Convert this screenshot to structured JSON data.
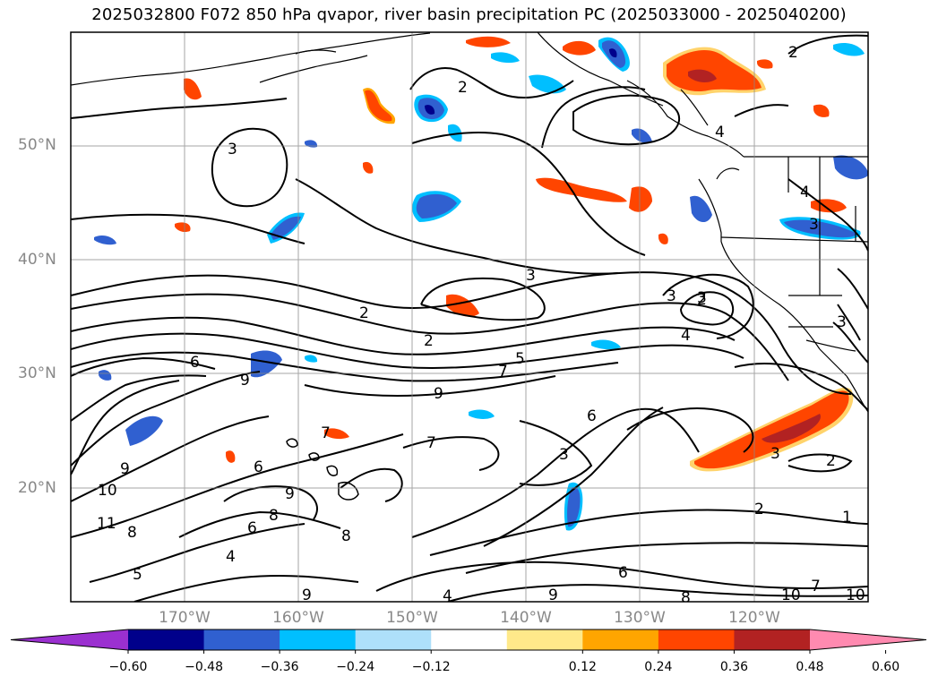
{
  "title": "2025032800 F072 850 hPa qvapor, river basin precipitation PC (2025033000 - 2025040200)",
  "map": {
    "lat_labels": [
      "50°N",
      "40°N",
      "30°N",
      "20°N"
    ],
    "lon_labels": [
      "170°W",
      "160°W",
      "150°W",
      "140°W",
      "130°W",
      "120°W"
    ],
    "gridlines": true,
    "contour_labels": [
      {
        "text": "2"
      },
      {
        "text": "3"
      },
      {
        "text": "2"
      },
      {
        "text": "3"
      },
      {
        "text": "2"
      },
      {
        "text": "4"
      },
      {
        "text": "2"
      },
      {
        "text": "5"
      },
      {
        "text": "7"
      },
      {
        "text": "9"
      },
      {
        "text": "6"
      },
      {
        "text": "7"
      },
      {
        "text": "3"
      },
      {
        "text": "3"
      },
      {
        "text": "2"
      },
      {
        "text": "2"
      },
      {
        "text": "1"
      },
      {
        "text": "6"
      },
      {
        "text": "9"
      },
      {
        "text": "9"
      },
      {
        "text": "10"
      },
      {
        "text": "11"
      },
      {
        "text": "8"
      },
      {
        "text": "5"
      },
      {
        "text": "6"
      },
      {
        "text": "4"
      },
      {
        "text": "8"
      },
      {
        "text": "9"
      },
      {
        "text": "7"
      },
      {
        "text": "6"
      },
      {
        "text": "8"
      },
      {
        "text": "4"
      },
      {
        "text": "9"
      },
      {
        "text": "8"
      },
      {
        "text": "10"
      },
      {
        "text": "3"
      },
      {
        "text": "3"
      },
      {
        "text": "4"
      },
      {
        "text": "2"
      },
      {
        "text": "3"
      },
      {
        "text": "4"
      },
      {
        "text": "3"
      },
      {
        "text": "6"
      },
      {
        "text": "9"
      },
      {
        "text": "7"
      },
      {
        "text": "10"
      }
    ]
  },
  "colorbar": {
    "tick_labels": [
      "−0.60",
      "−0.48",
      "−0.36",
      "−0.24",
      "−0.12",
      "0.12",
      "0.24",
      "0.36",
      "0.48",
      "0.60"
    ],
    "colors": [
      "#9b30d0",
      "#00008b",
      "#3060d0",
      "#00bfff",
      "#aee0fa",
      "#ffffff",
      "#ffe98a",
      "#ffa500",
      "#ff4500",
      "#b22222",
      "#ff8ab0"
    ]
  }
}
